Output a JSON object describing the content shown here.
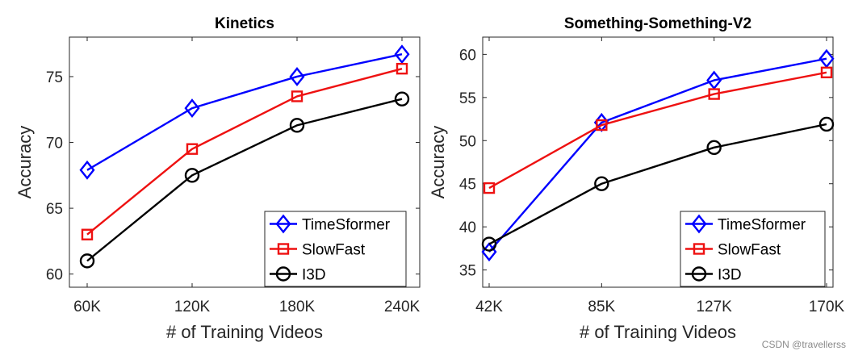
{
  "chart_data": [
    {
      "type": "line",
      "title": "Kinetics",
      "xlabel": "# of Training Videos",
      "ylabel": "Accuracy",
      "categories": [
        "60K",
        "120K",
        "180K",
        "240K"
      ],
      "ylim": [
        59,
        78
      ],
      "yticks": [
        60,
        65,
        70,
        75
      ],
      "grid": false,
      "legend": "bottom-right",
      "series": [
        {
          "name": "TimeSformer",
          "values": [
            67.9,
            72.6,
            75.0,
            76.7
          ],
          "color": "#0000ff",
          "marker": "diamond"
        },
        {
          "name": "SlowFast",
          "values": [
            63.0,
            69.5,
            73.5,
            75.6
          ],
          "color": "#ee1111",
          "marker": "square"
        },
        {
          "name": "I3D",
          "values": [
            61.0,
            67.5,
            71.3,
            73.3
          ],
          "color": "#000000",
          "marker": "circle"
        }
      ]
    },
    {
      "type": "line",
      "title": "Something-Something-V2",
      "xlabel": "# of Training Videos",
      "ylabel": "Accuracy",
      "categories": [
        "42K",
        "85K",
        "127K",
        "170K"
      ],
      "ylim": [
        33,
        62
      ],
      "yticks": [
        35,
        40,
        45,
        50,
        55,
        60
      ],
      "grid": false,
      "legend": "bottom-right",
      "series": [
        {
          "name": "TimeSformer",
          "values": [
            37.1,
            52.1,
            57.0,
            59.5
          ],
          "color": "#0000ff",
          "marker": "diamond"
        },
        {
          "name": "SlowFast",
          "values": [
            44.5,
            51.8,
            55.4,
            57.9
          ],
          "color": "#ee1111",
          "marker": "square"
        },
        {
          "name": "I3D",
          "values": [
            38.0,
            45.0,
            49.2,
            51.9
          ],
          "color": "#000000",
          "marker": "circle"
        }
      ]
    }
  ],
  "watermark": "CSDN @travellerss"
}
